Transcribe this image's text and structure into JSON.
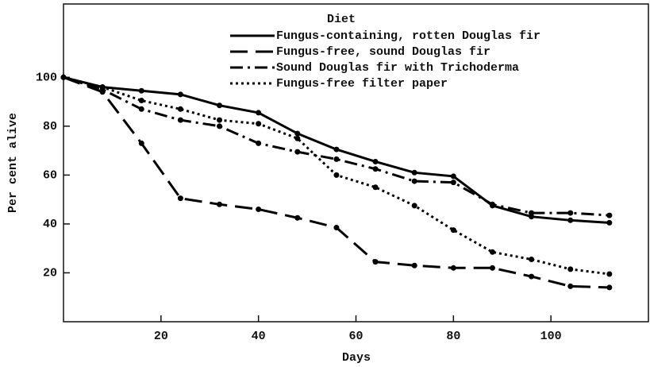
{
  "chart_data": {
    "type": "line",
    "xlabel": "Days",
    "ylabel": "Per cent alive",
    "legend_title": "Diet",
    "legend": "upper right",
    "x": [
      0,
      8,
      16,
      24,
      32,
      40,
      48,
      56,
      64,
      72,
      80,
      88,
      96,
      104,
      112
    ],
    "series": [
      {
        "name": "Fungus-containing, rotten Douglas fir",
        "color": "#000000",
        "style": "solid",
        "values": [
          100,
          96,
          94.5,
          93,
          88.5,
          85.5,
          77,
          70.5,
          65.5,
          61,
          59.5,
          47.5,
          43,
          41.5,
          40.5
        ]
      },
      {
        "name": "Fungus-free, sound Douglas fir",
        "color": "#000000",
        "style": "dashed",
        "values": [
          100,
          94,
          73,
          50.5,
          48,
          46,
          42.5,
          38.5,
          24.5,
          23,
          22,
          22,
          18.5,
          14.5,
          14
        ]
      },
      {
        "name": "Sound Douglas fir with Trichoderma",
        "color": "#000000",
        "style": "dashdot",
        "values": [
          100,
          95,
          87,
          82.5,
          80,
          73,
          69.5,
          66.5,
          62.5,
          57.5,
          57,
          48,
          44.5,
          44.5,
          43.5
        ]
      },
      {
        "name": "Fungus-free filter paper",
        "color": "#000000",
        "style": "dotted",
        "values": [
          100,
          96,
          90.5,
          87,
          82.5,
          81,
          75,
          60,
          55,
          47.5,
          37.5,
          28.5,
          25.5,
          21.5,
          19.5
        ]
      }
    ],
    "xlim": [
      0,
      120
    ],
    "xticks": [
      20,
      40,
      60,
      80,
      100
    ],
    "ylim": [
      0,
      130
    ],
    "yticks": [
      20,
      40,
      60,
      80,
      100
    ]
  }
}
